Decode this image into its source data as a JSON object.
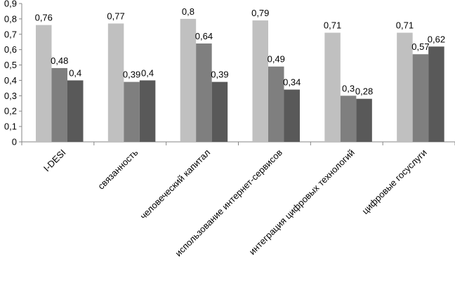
{
  "chart_data": {
    "type": "bar",
    "categories": [
      "I-DESI",
      "связанность",
      "человеческий капитал",
      "использование интернет-сервисов",
      "интеграция цифровых технологий",
      "цифровые госуслуги"
    ],
    "series": [
      {
        "values": [
          0.76,
          0.77,
          0.8,
          0.79,
          0.71,
          0.71
        ],
        "color": "#c0c0c0"
      },
      {
        "values": [
          0.48,
          0.39,
          0.64,
          0.49,
          0.3,
          0.57
        ],
        "color": "#7f7f7f"
      },
      {
        "values": [
          0.4,
          0.4,
          0.39,
          0.34,
          0.28,
          0.62
        ],
        "color": "#595959"
      }
    ],
    "data_labels": [
      [
        "0,76",
        "0,77",
        "0,8",
        "0,79",
        "0,71",
        "0,71"
      ],
      [
        "0,48",
        "0,39",
        "0,64",
        "0,49",
        "0,3",
        "0,57"
      ],
      [
        "0,4",
        "0,4",
        "0,39",
        "0,34",
        "0,28",
        "0,62"
      ]
    ],
    "yticks": [
      0,
      0.1,
      0.2,
      0.3,
      0.4,
      0.5,
      0.6,
      0.7,
      0.8,
      0.9
    ],
    "ytick_labels": [
      "0",
      "0,1",
      "0,2",
      "0,3",
      "0,4",
      "0,5",
      "0,6",
      "0,7",
      "0,8",
      "0,9"
    ],
    "ylim": [
      0,
      0.9
    ],
    "grid": false,
    "legend": "none",
    "axis_color": "#868686"
  }
}
